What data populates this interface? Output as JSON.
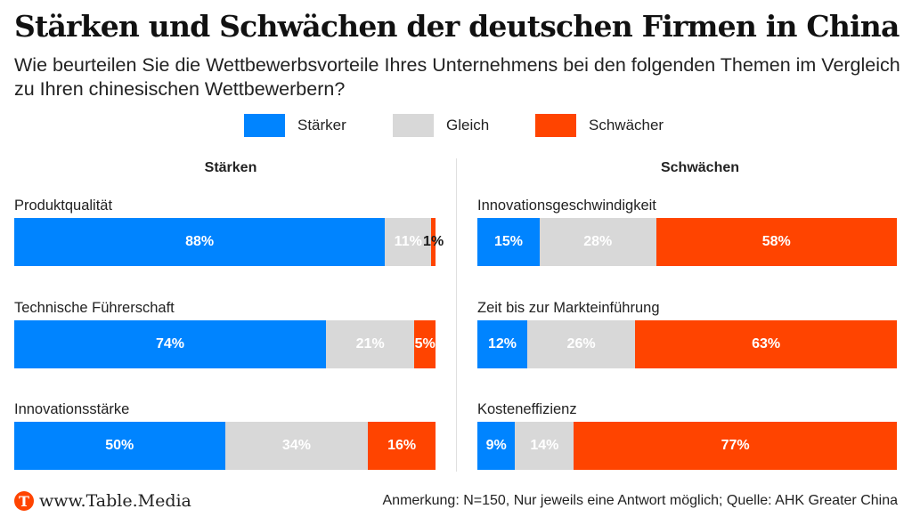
{
  "header": {
    "title": "Stärken und Schwächen der deutschen Firmen in China",
    "subtitle": "Wie beurteilen Sie die Wettbewerbsvorteile Ihres Unternehmens bei den folgenden Themen im Vergleich zu Ihren chinesischen Wettbewerbern?"
  },
  "colors": {
    "staerker": "#0084ff",
    "gleich": "#d8d8d8",
    "schwaecher": "#ff4400"
  },
  "legend": [
    {
      "label": "Stärker",
      "color": "#0084ff"
    },
    {
      "label": "Gleich",
      "color": "#d8d8d8"
    },
    {
      "label": "Schwächer",
      "color": "#ff4400"
    }
  ],
  "footer": {
    "logo_letter": "T",
    "brand": "www.Table.Media",
    "note": "Anmerkung: N=150, Nur jeweils eine Antwort möglich; Quelle: AHK Greater China"
  },
  "chart_data": [
    {
      "type": "bar",
      "orientation": "horizontal-stacked-100",
      "title": "Stärken",
      "categories": [
        "Produktqualität",
        "Technische Führerschaft",
        "Innovationsstärke"
      ],
      "series": [
        {
          "name": "Stärker",
          "values": [
            88,
            74,
            50
          ],
          "labels": [
            "88%",
            "74%",
            "50%"
          ]
        },
        {
          "name": "Gleich",
          "values": [
            11,
            21,
            34
          ],
          "labels": [
            "11%",
            "21%",
            "34%"
          ]
        },
        {
          "name": "Schwächer",
          "values": [
            1,
            5,
            16
          ],
          "labels": [
            "1%",
            "5%",
            "16%"
          ]
        }
      ],
      "xlim": [
        0,
        100
      ]
    },
    {
      "type": "bar",
      "orientation": "horizontal-stacked-100",
      "title": "Schwächen",
      "categories": [
        "Innovationsgeschwindigkeit",
        "Zeit bis zur Markteinführung",
        "Kosteneffizienz"
      ],
      "series": [
        {
          "name": "Stärker",
          "values": [
            15,
            12,
            9
          ],
          "labels": [
            "15%",
            "12%",
            "9%"
          ]
        },
        {
          "name": "Gleich",
          "values": [
            28,
            26,
            14
          ],
          "labels": [
            "28%",
            "26%",
            "14%"
          ]
        },
        {
          "name": "Schwächer",
          "values": [
            58,
            63,
            77
          ],
          "labels": [
            "58%",
            "63%",
            "77%"
          ]
        }
      ],
      "xlim": [
        0,
        100
      ]
    }
  ]
}
